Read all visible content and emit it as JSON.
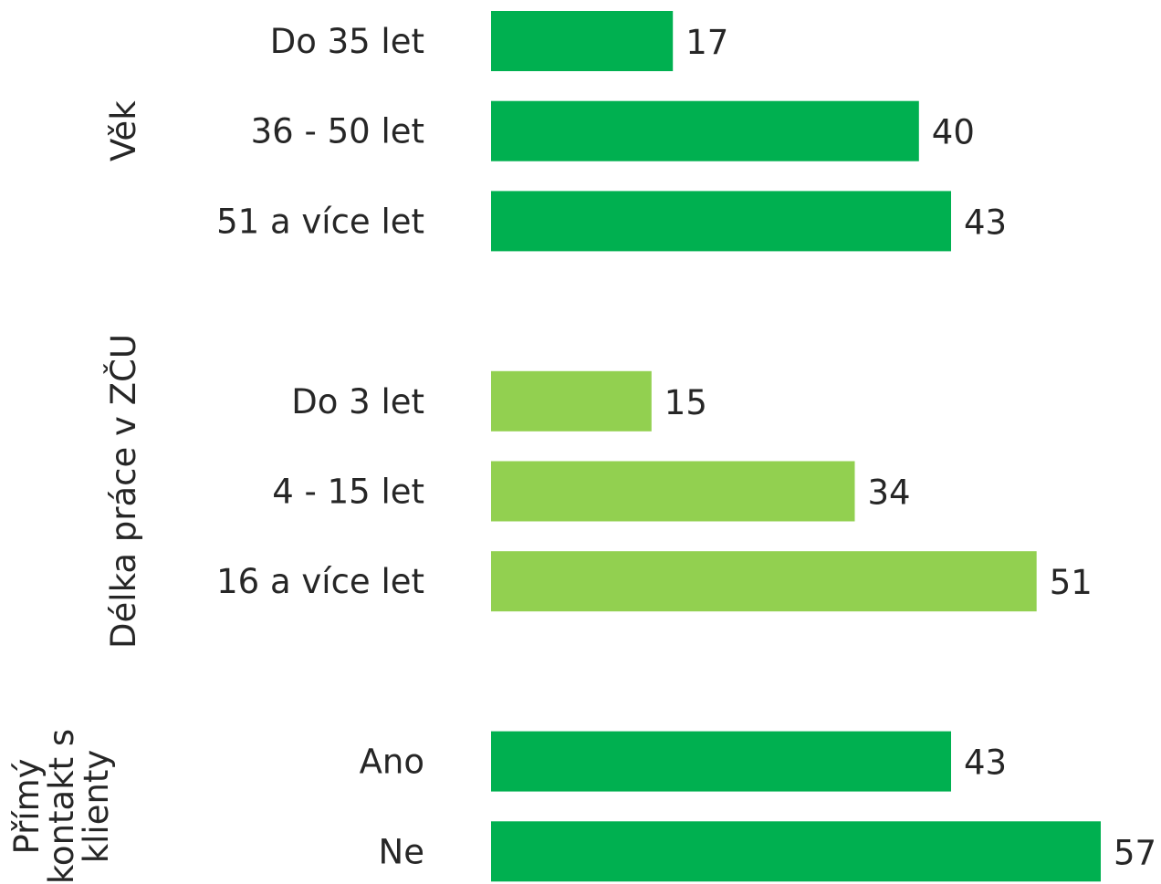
{
  "chart_data": {
    "type": "bar",
    "orientation": "horizontal",
    "grid": false,
    "legend": "none",
    "groups": [
      {
        "label_lines": [
          "Věk"
        ],
        "color": "#00B050",
        "categories": [
          "Do 35 let",
          "36 - 50 let",
          "51 a více let"
        ],
        "values": [
          17,
          40,
          43
        ]
      },
      {
        "label_lines": [
          "Délka práce v ZČU"
        ],
        "color": "#92D050",
        "categories": [
          "Do 3 let",
          "4 - 15 let",
          "16 a více let"
        ],
        "values": [
          15,
          34,
          51
        ]
      },
      {
        "label_lines": [
          "Přímý",
          "kontakt s",
          "klienty"
        ],
        "color": "#00B050",
        "categories": [
          "Ano",
          "Ne"
        ],
        "values": [
          43,
          57
        ]
      }
    ]
  }
}
